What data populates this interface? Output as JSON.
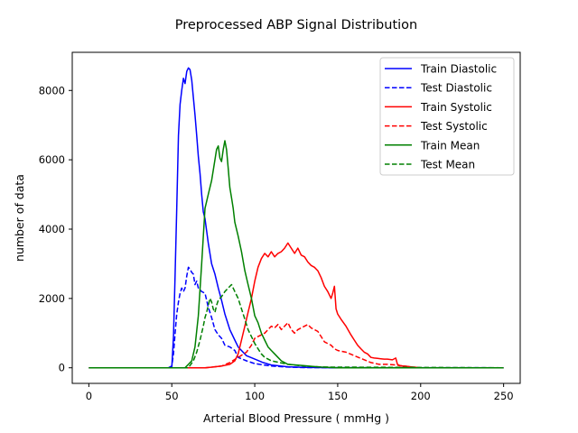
{
  "chart_data": {
    "type": "line",
    "title": "Preprocessed ABP Signal Distribution",
    "xlabel": "Arterial Blood Pressure ( mmHg )",
    "ylabel": "number of data",
    "xlim": [
      -10,
      260
    ],
    "ylim": [
      -450,
      9100
    ],
    "xticks": [
      0,
      50,
      100,
      150,
      200,
      250
    ],
    "yticks": [
      0,
      2000,
      4000,
      6000,
      8000
    ],
    "grid": false,
    "legend_position": "top-right",
    "series": [
      {
        "name": "Train Diastolic",
        "color": "#0000ff",
        "dash": "solid",
        "x": [
          0,
          48,
          50,
          51,
          52,
          53,
          54,
          55,
          56,
          57,
          58,
          59,
          60,
          61,
          62,
          63,
          64,
          65,
          66,
          67,
          68,
          69,
          70,
          72,
          74,
          76,
          78,
          80,
          82,
          85,
          88,
          90,
          95,
          100,
          105,
          110,
          120,
          130,
          140,
          150,
          250
        ],
        "y": [
          0,
          0,
          0,
          900,
          2700,
          4600,
          6700,
          7600,
          8000,
          8350,
          8200,
          8550,
          8650,
          8600,
          8300,
          7800,
          7300,
          6700,
          6100,
          5600,
          5000,
          4500,
          4300,
          3600,
          3000,
          2700,
          2300,
          1950,
          1550,
          1100,
          800,
          600,
          350,
          250,
          150,
          80,
          30,
          10,
          5,
          0,
          0
        ]
      },
      {
        "name": "Test Diastolic",
        "color": "#0000ff",
        "dash": "dashed",
        "x": [
          0,
          48,
          50,
          51,
          52,
          53,
          54,
          55,
          56,
          57,
          58,
          59,
          60,
          61,
          62,
          63,
          64,
          65,
          66,
          68,
          70,
          72,
          74,
          76,
          78,
          80,
          82,
          85,
          88,
          90,
          95,
          100,
          110,
          120,
          130,
          250
        ],
        "y": [
          0,
          0,
          50,
          400,
          1000,
          1550,
          1900,
          2150,
          2300,
          2200,
          2300,
          2650,
          2900,
          2850,
          2750,
          2700,
          2400,
          2500,
          2300,
          2200,
          2150,
          1750,
          1450,
          1100,
          950,
          850,
          650,
          600,
          500,
          300,
          200,
          120,
          50,
          20,
          5,
          0
        ]
      },
      {
        "name": "Train Systolic",
        "color": "#ff0000",
        "dash": "solid",
        "x": [
          0,
          70,
          75,
          80,
          85,
          88,
          90,
          92,
          94,
          96,
          98,
          100,
          102,
          104,
          106,
          108,
          110,
          112,
          114,
          116,
          118,
          120,
          122,
          124,
          126,
          128,
          130,
          132,
          134,
          136,
          138,
          140,
          142,
          144,
          146,
          147,
          148,
          149,
          150,
          152,
          155,
          158,
          160,
          162,
          164,
          166,
          168,
          170,
          172,
          174,
          176,
          178,
          180,
          183,
          185,
          186,
          188,
          190,
          195,
          200,
          250
        ],
        "y": [
          0,
          0,
          20,
          50,
          100,
          200,
          400,
          800,
          1200,
          1600,
          2000,
          2500,
          2900,
          3150,
          3300,
          3200,
          3350,
          3200,
          3300,
          3350,
          3450,
          3600,
          3450,
          3300,
          3450,
          3250,
          3200,
          3050,
          2950,
          2900,
          2800,
          2600,
          2350,
          2200,
          2000,
          2150,
          2350,
          1700,
          1550,
          1400,
          1200,
          950,
          800,
          650,
          550,
          450,
          400,
          300,
          280,
          270,
          260,
          250,
          250,
          230,
          280,
          100,
          50,
          50,
          20,
          0,
          0
        ]
      },
      {
        "name": "Test Systolic",
        "color": "#ff0000",
        "dash": "dashed",
        "x": [
          0,
          70,
          80,
          85,
          90,
          95,
          98,
          100,
          102,
          104,
          106,
          108,
          110,
          112,
          114,
          116,
          118,
          120,
          122,
          124,
          126,
          128,
          130,
          132,
          134,
          136,
          138,
          140,
          142,
          144,
          146,
          148,
          150,
          155,
          160,
          165,
          170,
          175,
          180,
          185,
          190,
          195,
          200,
          250
        ],
        "y": [
          0,
          0,
          50,
          150,
          300,
          450,
          650,
          850,
          900,
          950,
          1000,
          1100,
          1200,
          1150,
          1250,
          1100,
          1200,
          1300,
          1100,
          1000,
          1100,
          1150,
          1200,
          1250,
          1150,
          1100,
          1050,
          900,
          750,
          700,
          650,
          550,
          500,
          450,
          350,
          250,
          150,
          100,
          100,
          80,
          50,
          20,
          0,
          0
        ]
      },
      {
        "name": "Train Mean",
        "color": "#008000",
        "dash": "solid",
        "x": [
          0,
          58,
          60,
          62,
          64,
          66,
          68,
          70,
          72,
          74,
          76,
          77,
          78,
          79,
          80,
          81,
          82,
          83,
          84,
          85,
          86,
          87,
          88,
          90,
          92,
          94,
          96,
          98,
          100,
          102,
          104,
          106,
          108,
          110,
          112,
          114,
          116,
          118,
          120,
          125,
          130,
          135,
          140,
          150,
          250
        ],
        "y": [
          0,
          0,
          100,
          200,
          600,
          1500,
          3000,
          4600,
          5000,
          5400,
          6000,
          6300,
          6400,
          6050,
          5950,
          6300,
          6550,
          6300,
          5750,
          5200,
          4900,
          4600,
          4200,
          3800,
          3350,
          2800,
          2400,
          2000,
          1500,
          1300,
          1000,
          800,
          600,
          500,
          400,
          300,
          200,
          150,
          100,
          80,
          60,
          40,
          20,
          0,
          0
        ]
      },
      {
        "name": "Test Mean",
        "color": "#008000",
        "dash": "dashed",
        "x": [
          0,
          60,
          63,
          65,
          67,
          69,
          70,
          71,
          72,
          73,
          74,
          75,
          76,
          77,
          78,
          80,
          82,
          84,
          86,
          88,
          90,
          92,
          94,
          96,
          98,
          100,
          102,
          104,
          106,
          108,
          110,
          115,
          120,
          130,
          140,
          250
        ],
        "y": [
          0,
          0,
          200,
          450,
          800,
          1200,
          1450,
          1600,
          1800,
          2000,
          1900,
          1700,
          1600,
          1800,
          1950,
          2050,
          2200,
          2300,
          2400,
          2200,
          2000,
          1700,
          1400,
          1100,
          900,
          700,
          550,
          400,
          300,
          250,
          200,
          150,
          100,
          50,
          20,
          0
        ]
      }
    ]
  }
}
